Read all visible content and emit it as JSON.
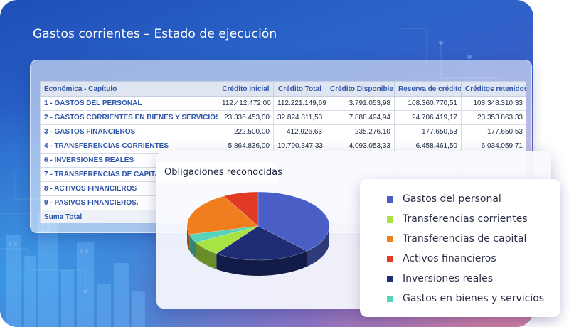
{
  "page": {
    "title": "Gastos corrientes – Estado de ejecución"
  },
  "table": {
    "headers": [
      "Económica - Capítulo",
      "Crédito Inicial",
      "Crédito Total",
      "Crédito Disponible",
      "Reserva de crédito",
      "Créditos retenidos"
    ],
    "rows": [
      {
        "name": "1 - GASTOS DEL PERSONAL",
        "values": [
          "112.412.472,00",
          "112.221.149,69",
          "3.791.053,98",
          "108.360.770,51",
          "108.348.310,33"
        ]
      },
      {
        "name": "2 - GASTOS CORRIENTES EN BIENES Y SERVICIOS.",
        "values": [
          "23.336.453,00",
          "32.824.811,53",
          "7.888.494,94",
          "24.706.419,17",
          "23.353.863,33"
        ]
      },
      {
        "name": "3 - GASTOS FINANCIEROS",
        "values": [
          "222.500,00",
          "412.926,63",
          "235.276,10",
          "177.650,53",
          "177.650,53"
        ]
      },
      {
        "name": "4 - TRANSFERENCIAS CORRIENTES",
        "values": [
          "5.864.836,00",
          "10.790.347,33",
          "4.093.053,33",
          "6.458.461,50",
          "6.034.059,71"
        ]
      },
      {
        "name": "6 - INVERSIONES REALES",
        "values": [
          "",
          "",
          "",
          "",
          ""
        ]
      },
      {
        "name": "7 - TRANSFERENCIAS DE CAPITAL",
        "values": [
          "",
          "",
          "",
          "",
          ""
        ]
      },
      {
        "name": "8 - ACTIVOS FINANCIEROS",
        "values": [
          "",
          "",
          "",
          "",
          ""
        ]
      },
      {
        "name": "9 - PASIVOS FINANCIEROS.",
        "values": [
          "",
          "",
          "",
          "",
          ""
        ]
      },
      {
        "name": "Suma Total",
        "values": [
          "",
          "",
          "",
          "",
          ""
        ]
      }
    ]
  },
  "chart_data": {
    "type": "pie",
    "title": "Obligaciones reconocidas",
    "categories": [
      "Gastos del personal",
      "Inversiones reales",
      "Transferencias corrientes",
      "Gastos en bienes y servicios",
      "Transferencias de capital",
      "Activos financieros"
    ],
    "values": [
      38,
      22,
      7,
      4,
      21,
      8
    ],
    "colors": [
      "#4a5fc6",
      "#1e2d76",
      "#a8e344",
      "#56d4bb",
      "#f07d1e",
      "#e03a24"
    ]
  },
  "legend": {
    "items": [
      {
        "label": "Gastos del personal",
        "color": "#4a5fc6"
      },
      {
        "label": "Transferencias corrientes",
        "color": "#a8e344"
      },
      {
        "label": "Transferencias de capital",
        "color": "#f07d1e"
      },
      {
        "label": "Activos financieros",
        "color": "#e03a24"
      },
      {
        "label": "Inversiones reales",
        "color": "#1e2d76"
      },
      {
        "label": "Gastos en bienes y servicios",
        "color": "#56d4bb"
      }
    ]
  }
}
